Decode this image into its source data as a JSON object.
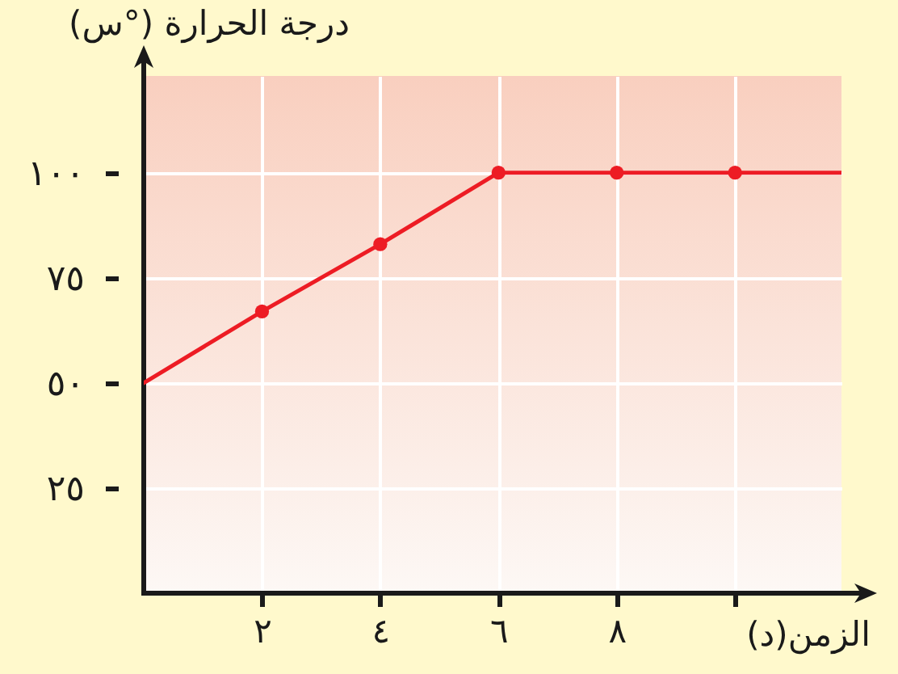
{
  "chart_data": {
    "type": "line",
    "ylabel": "درجة الحرارة (°س)",
    "xlabel": "الزمن(د)",
    "series": [
      {
        "type": "line",
        "x": [
          0,
          2,
          4,
          6,
          8,
          10,
          11.8
        ],
        "values": [
          50,
          67,
          83,
          100,
          100,
          100,
          100
        ],
        "color": "#ed1c24",
        "marker": "none",
        "line_style": "solid"
      },
      {
        "type": "scatter",
        "x": [
          2,
          4,
          6,
          8,
          10
        ],
        "values": [
          67,
          83,
          100,
          100,
          100
        ],
        "color": "#ed1c24",
        "marker": "circle"
      }
    ],
    "xlim": [
      0,
      11.8
    ],
    "ylim": [
      0,
      123
    ],
    "xticks": [
      {
        "value": 2,
        "label": "٢"
      },
      {
        "value": 4,
        "label": "٤"
      },
      {
        "value": 6,
        "label": "٦"
      },
      {
        "value": 8,
        "label": "٨"
      },
      {
        "value": 10,
        "label": null
      }
    ],
    "yticks": [
      {
        "value": 25,
        "label": "٢٥"
      },
      {
        "value": 50,
        "label": "٥٠"
      },
      {
        "value": 75,
        "label": "٧٥"
      },
      {
        "value": 100,
        "label": "١٠٠"
      }
    ],
    "grid": true
  }
}
